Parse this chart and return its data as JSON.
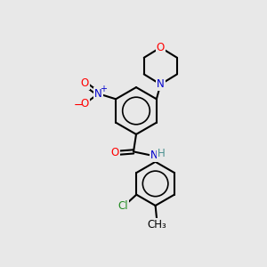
{
  "bg_color": "#e8e8e8",
  "bond_color": "#000000",
  "bond_width": 1.5,
  "atom_colors": {
    "O": "#ff0000",
    "N": "#0000cd",
    "Cl": "#228b22",
    "C": "#000000",
    "H": "#4a9090"
  },
  "font_size_atom": 8.5,
  "scale": 1.0
}
